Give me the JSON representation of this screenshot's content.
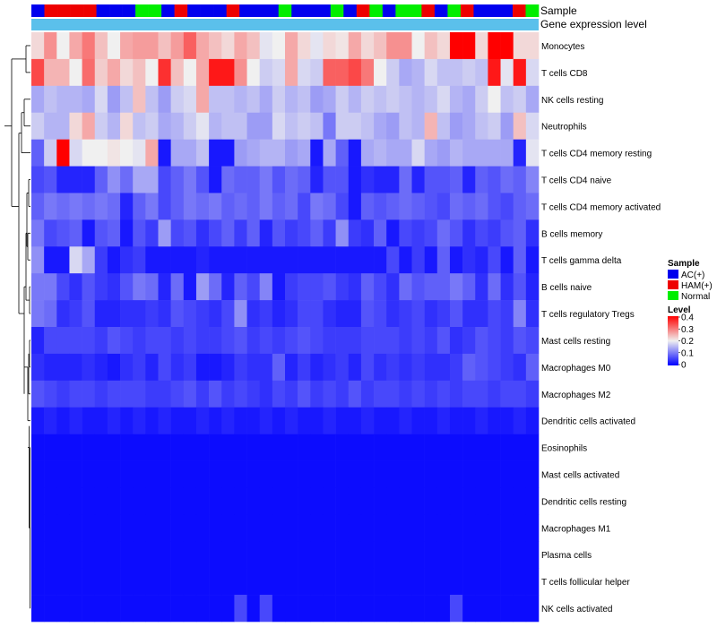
{
  "chart_data": {
    "type": "heatmap",
    "title": "",
    "annotation_tracks": [
      "Sample",
      "Gene expression level"
    ],
    "legend": {
      "sample_title": "Sample",
      "sample_entries": [
        {
          "label": "AC(+)",
          "color": "#0000ee"
        },
        {
          "label": "HAM(+)",
          "color": "#ee0000"
        },
        {
          "label": "Normal",
          "color": "#00ee00"
        }
      ],
      "level_title": "Level",
      "level_ticks": [
        "0.4",
        "0.3",
        "0.2",
        "0.1",
        "0"
      ],
      "color_scale": {
        "low": "#0000ff",
        "mid": "#f0f0f0",
        "high": "#ff0000",
        "min": 0,
        "mid_value": 0.2,
        "max": 0.4
      }
    },
    "colors": {
      "AC": "#0000ee",
      "HAM": "#ee0000",
      "Normal": "#00ee00",
      "expression_track": "#5bc0eb"
    },
    "sample_groups": [
      "AC",
      "HAM",
      "HAM",
      "HAM",
      "HAM",
      "AC",
      "AC",
      "AC",
      "Normal",
      "Normal",
      "AC",
      "HAM",
      "AC",
      "AC",
      "AC",
      "HAM",
      "AC",
      "AC",
      "AC",
      "Normal",
      "AC",
      "AC",
      "AC",
      "Normal",
      "AC",
      "HAM",
      "Normal",
      "AC",
      "Normal",
      "Normal",
      "HAM",
      "AC",
      "Normal",
      "HAM",
      "AC",
      "AC",
      "AC",
      "HAM",
      "Normal"
    ],
    "rows": [
      "Monocytes",
      "T cells CD8",
      "NK cells resting",
      "Neutrophils",
      "T cells CD4 memory resting",
      "T cells CD4 naive",
      "T cells CD4 memory activated",
      "B cells memory",
      "T cells gamma delta",
      "B cells naive",
      "T cells regulatory  Tregs",
      "Mast cells resting",
      "Macrophages M0",
      "Macrophages M2",
      "Dendritic cells activated",
      "Eosinophils",
      "Mast cells activated",
      "Dendritic cells resting",
      "Macrophages M1",
      "Plasma cells",
      "T cells follicular helper",
      "NK cells activated"
    ],
    "values": [
      [
        0.22,
        0.28,
        0.2,
        0.26,
        0.3,
        0.24,
        0.2,
        0.26,
        0.27,
        0.27,
        0.24,
        0.27,
        0.32,
        0.26,
        0.24,
        0.22,
        0.26,
        0.24,
        0.19,
        0.2,
        0.26,
        0.22,
        0.19,
        0.22,
        0.21,
        0.26,
        0.22,
        0.24,
        0.28,
        0.28,
        0.2,
        0.24,
        0.22,
        0.4,
        0.4,
        0.22,
        0.4,
        0.4,
        0.22,
        0.22
      ],
      [
        0.34,
        0.25,
        0.25,
        0.2,
        0.31,
        0.23,
        0.26,
        0.22,
        0.24,
        0.2,
        0.36,
        0.24,
        0.2,
        0.26,
        0.38,
        0.38,
        0.28,
        0.2,
        0.17,
        0.18,
        0.26,
        0.18,
        0.17,
        0.32,
        0.32,
        0.34,
        0.3,
        0.2,
        0.17,
        0.14,
        0.15,
        0.18,
        0.16,
        0.16,
        0.17,
        0.16,
        0.38,
        0.19,
        0.38,
        0.18
      ],
      [
        0.14,
        0.16,
        0.15,
        0.15,
        0.14,
        0.18,
        0.13,
        0.16,
        0.24,
        0.16,
        0.13,
        0.17,
        0.18,
        0.26,
        0.16,
        0.16,
        0.15,
        0.16,
        0.14,
        0.17,
        0.15,
        0.16,
        0.13,
        0.14,
        0.17,
        0.15,
        0.17,
        0.16,
        0.17,
        0.16,
        0.15,
        0.16,
        0.18,
        0.15,
        0.14,
        0.17,
        0.2,
        0.16,
        0.17,
        0.14
      ],
      [
        0.17,
        0.15,
        0.15,
        0.22,
        0.26,
        0.17,
        0.15,
        0.22,
        0.16,
        0.17,
        0.14,
        0.15,
        0.17,
        0.19,
        0.15,
        0.16,
        0.16,
        0.13,
        0.13,
        0.18,
        0.16,
        0.17,
        0.16,
        0.1,
        0.17,
        0.17,
        0.16,
        0.14,
        0.13,
        0.16,
        0.15,
        0.25,
        0.16,
        0.13,
        0.14,
        0.16,
        0.17,
        0.13,
        0.24,
        0.18
      ],
      [
        0.08,
        0.17,
        0.4,
        0.18,
        0.2,
        0.2,
        0.21,
        0.2,
        0.19,
        0.26,
        0.02,
        0.14,
        0.14,
        0.16,
        0.02,
        0.02,
        0.13,
        0.14,
        0.15,
        0.15,
        0.13,
        0.14,
        0.02,
        0.14,
        0.08,
        0.02,
        0.14,
        0.15,
        0.14,
        0.14,
        0.18,
        0.14,
        0.13,
        0.15,
        0.14,
        0.14,
        0.14,
        0.14,
        0.03,
        0.19
      ],
      [
        0.06,
        0.07,
        0.03,
        0.03,
        0.03,
        0.08,
        0.12,
        0.09,
        0.14,
        0.14,
        0.06,
        0.08,
        0.1,
        0.07,
        0.02,
        0.09,
        0.08,
        0.08,
        0.1,
        0.07,
        0.09,
        0.08,
        0.03,
        0.07,
        0.07,
        0.02,
        0.04,
        0.03,
        0.03,
        0.09,
        0.03,
        0.07,
        0.07,
        0.08,
        0.03,
        0.08,
        0.07,
        0.09,
        0.08,
        0.11
      ],
      [
        0.08,
        0.1,
        0.09,
        0.1,
        0.09,
        0.1,
        0.09,
        0.03,
        0.08,
        0.1,
        0.06,
        0.08,
        0.1,
        0.09,
        0.1,
        0.08,
        0.09,
        0.08,
        0.1,
        0.08,
        0.09,
        0.06,
        0.1,
        0.09,
        0.06,
        0.02,
        0.08,
        0.07,
        0.08,
        0.09,
        0.08,
        0.07,
        0.06,
        0.09,
        0.08,
        0.09,
        0.07,
        0.06,
        0.08,
        0.09
      ],
      [
        0.1,
        0.06,
        0.07,
        0.08,
        0.02,
        0.07,
        0.08,
        0.02,
        0.07,
        0.05,
        0.13,
        0.06,
        0.07,
        0.04,
        0.06,
        0.08,
        0.05,
        0.08,
        0.03,
        0.07,
        0.05,
        0.06,
        0.08,
        0.05,
        0.12,
        0.05,
        0.04,
        0.08,
        0.02,
        0.06,
        0.05,
        0.06,
        0.09,
        0.07,
        0.04,
        0.06,
        0.05,
        0.07,
        0.08,
        0.04
      ],
      [
        0.12,
        0.02,
        0.02,
        0.18,
        0.14,
        0.05,
        0.02,
        0.04,
        0.05,
        0.02,
        0.02,
        0.02,
        0.02,
        0.03,
        0.02,
        0.02,
        0.02,
        0.02,
        0.02,
        0.02,
        0.02,
        0.02,
        0.02,
        0.02,
        0.02,
        0.02,
        0.02,
        0.02,
        0.06,
        0.02,
        0.05,
        0.02,
        0.08,
        0.02,
        0.04,
        0.03,
        0.06,
        0.02,
        0.08,
        0.02
      ],
      [
        0.1,
        0.1,
        0.06,
        0.04,
        0.07,
        0.05,
        0.04,
        0.07,
        0.1,
        0.09,
        0.03,
        0.09,
        0.02,
        0.13,
        0.09,
        0.03,
        0.08,
        0.06,
        0.11,
        0.02,
        0.05,
        0.06,
        0.06,
        0.07,
        0.05,
        0.04,
        0.08,
        0.06,
        0.04,
        0.09,
        0.07,
        0.08,
        0.08,
        0.1,
        0.08,
        0.04,
        0.09,
        0.04,
        0.07,
        0.03
      ],
      [
        0.1,
        0.09,
        0.04,
        0.05,
        0.07,
        0.03,
        0.03,
        0.04,
        0.04,
        0.05,
        0.04,
        0.07,
        0.06,
        0.05,
        0.04,
        0.06,
        0.12,
        0.04,
        0.05,
        0.03,
        0.04,
        0.06,
        0.06,
        0.04,
        0.03,
        0.03,
        0.07,
        0.06,
        0.04,
        0.05,
        0.06,
        0.04,
        0.05,
        0.07,
        0.04,
        0.04,
        0.06,
        0.05,
        0.11,
        0.04
      ],
      [
        0.03,
        0.06,
        0.06,
        0.06,
        0.06,
        0.05,
        0.07,
        0.06,
        0.05,
        0.06,
        0.06,
        0.05,
        0.06,
        0.05,
        0.05,
        0.06,
        0.07,
        0.05,
        0.06,
        0.05,
        0.06,
        0.07,
        0.06,
        0.05,
        0.05,
        0.05,
        0.06,
        0.06,
        0.06,
        0.05,
        0.06,
        0.05,
        0.07,
        0.04,
        0.05,
        0.07,
        0.06,
        0.05,
        0.07,
        0.06
      ],
      [
        0.04,
        0.03,
        0.03,
        0.03,
        0.04,
        0.03,
        0.02,
        0.04,
        0.05,
        0.03,
        0.06,
        0.04,
        0.05,
        0.02,
        0.02,
        0.03,
        0.05,
        0.04,
        0.04,
        0.08,
        0.03,
        0.05,
        0.03,
        0.04,
        0.05,
        0.03,
        0.06,
        0.04,
        0.05,
        0.04,
        0.05,
        0.04,
        0.04,
        0.05,
        0.08,
        0.07,
        0.06,
        0.05,
        0.04,
        0.08
      ],
      [
        0.07,
        0.06,
        0.05,
        0.06,
        0.06,
        0.05,
        0.06,
        0.06,
        0.06,
        0.05,
        0.05,
        0.06,
        0.07,
        0.05,
        0.07,
        0.05,
        0.06,
        0.05,
        0.04,
        0.06,
        0.05,
        0.07,
        0.05,
        0.06,
        0.05,
        0.07,
        0.05,
        0.06,
        0.06,
        0.05,
        0.06,
        0.05,
        0.06,
        0.05,
        0.06,
        0.06,
        0.05,
        0.06,
        0.06,
        0.05
      ],
      [
        0.02,
        0.03,
        0.02,
        0.03,
        0.02,
        0.02,
        0.03,
        0.02,
        0.03,
        0.02,
        0.03,
        0.02,
        0.02,
        0.03,
        0.02,
        0.03,
        0.02,
        0.02,
        0.03,
        0.02,
        0.03,
        0.02,
        0.02,
        0.03,
        0.02,
        0.02,
        0.03,
        0.02,
        0.02,
        0.03,
        0.02,
        0.02,
        0.03,
        0.02,
        0.02,
        0.03,
        0.02,
        0.02,
        0.03,
        0.02
      ],
      [
        0.01,
        0.01,
        0.01,
        0.01,
        0.01,
        0.01,
        0.01,
        0.01,
        0.01,
        0.01,
        0.01,
        0.01,
        0.01,
        0.01,
        0.01,
        0.01,
        0.01,
        0.01,
        0.01,
        0.01,
        0.01,
        0.01,
        0.01,
        0.01,
        0.01,
        0.01,
        0.01,
        0.01,
        0.01,
        0.01,
        0.01,
        0.01,
        0.01,
        0.01,
        0.01,
        0.01,
        0.01,
        0.01,
        0.01,
        0.01
      ],
      [
        0.01,
        0.01,
        0.01,
        0.01,
        0.01,
        0.01,
        0.01,
        0.01,
        0.01,
        0.01,
        0.01,
        0.01,
        0.01,
        0.01,
        0.01,
        0.01,
        0.01,
        0.01,
        0.01,
        0.01,
        0.01,
        0.01,
        0.01,
        0.01,
        0.01,
        0.01,
        0.01,
        0.01,
        0.01,
        0.01,
        0.01,
        0.01,
        0.01,
        0.01,
        0.01,
        0.01,
        0.01,
        0.01,
        0.01,
        0.01
      ],
      [
        0.01,
        0.01,
        0.01,
        0.01,
        0.01,
        0.01,
        0.01,
        0.01,
        0.01,
        0.01,
        0.01,
        0.01,
        0.01,
        0.01,
        0.01,
        0.01,
        0.01,
        0.01,
        0.01,
        0.01,
        0.01,
        0.01,
        0.01,
        0.01,
        0.01,
        0.01,
        0.01,
        0.01,
        0.01,
        0.01,
        0.01,
        0.01,
        0.01,
        0.01,
        0.01,
        0.01,
        0.01,
        0.01,
        0.01,
        0.01
      ],
      [
        0.01,
        0.01,
        0.01,
        0.01,
        0.01,
        0.01,
        0.01,
        0.01,
        0.01,
        0.01,
        0.01,
        0.01,
        0.01,
        0.01,
        0.01,
        0.01,
        0.01,
        0.01,
        0.01,
        0.01,
        0.01,
        0.01,
        0.01,
        0.01,
        0.01,
        0.01,
        0.01,
        0.01,
        0.01,
        0.01,
        0.01,
        0.01,
        0.01,
        0.01,
        0.01,
        0.01,
        0.01,
        0.01,
        0.01,
        0.01
      ],
      [
        0.01,
        0.01,
        0.01,
        0.01,
        0.01,
        0.01,
        0.01,
        0.01,
        0.01,
        0.01,
        0.01,
        0.01,
        0.01,
        0.01,
        0.01,
        0.01,
        0.01,
        0.01,
        0.01,
        0.01,
        0.01,
        0.01,
        0.01,
        0.01,
        0.01,
        0.01,
        0.01,
        0.01,
        0.01,
        0.01,
        0.01,
        0.01,
        0.01,
        0.01,
        0.01,
        0.01,
        0.01,
        0.01,
        0.01,
        0.01
      ],
      [
        0.01,
        0.01,
        0.01,
        0.01,
        0.01,
        0.01,
        0.01,
        0.01,
        0.01,
        0.01,
        0.01,
        0.01,
        0.01,
        0.01,
        0.01,
        0.01,
        0.01,
        0.01,
        0.01,
        0.01,
        0.01,
        0.01,
        0.01,
        0.01,
        0.01,
        0.01,
        0.01,
        0.01,
        0.01,
        0.01,
        0.01,
        0.01,
        0.01,
        0.01,
        0.01,
        0.01,
        0.01,
        0.01,
        0.01,
        0.01
      ],
      [
        0.01,
        0.01,
        0.01,
        0.01,
        0.01,
        0.01,
        0.01,
        0.01,
        0.01,
        0.01,
        0.01,
        0.01,
        0.01,
        0.01,
        0.01,
        0.01,
        0.06,
        0.01,
        0.06,
        0.01,
        0.01,
        0.01,
        0.01,
        0.01,
        0.01,
        0.01,
        0.01,
        0.01,
        0.01,
        0.01,
        0.01,
        0.01,
        0.01,
        0.06,
        0.01,
        0.01,
        0.01,
        0.01,
        0.01,
        0.01
      ]
    ]
  }
}
